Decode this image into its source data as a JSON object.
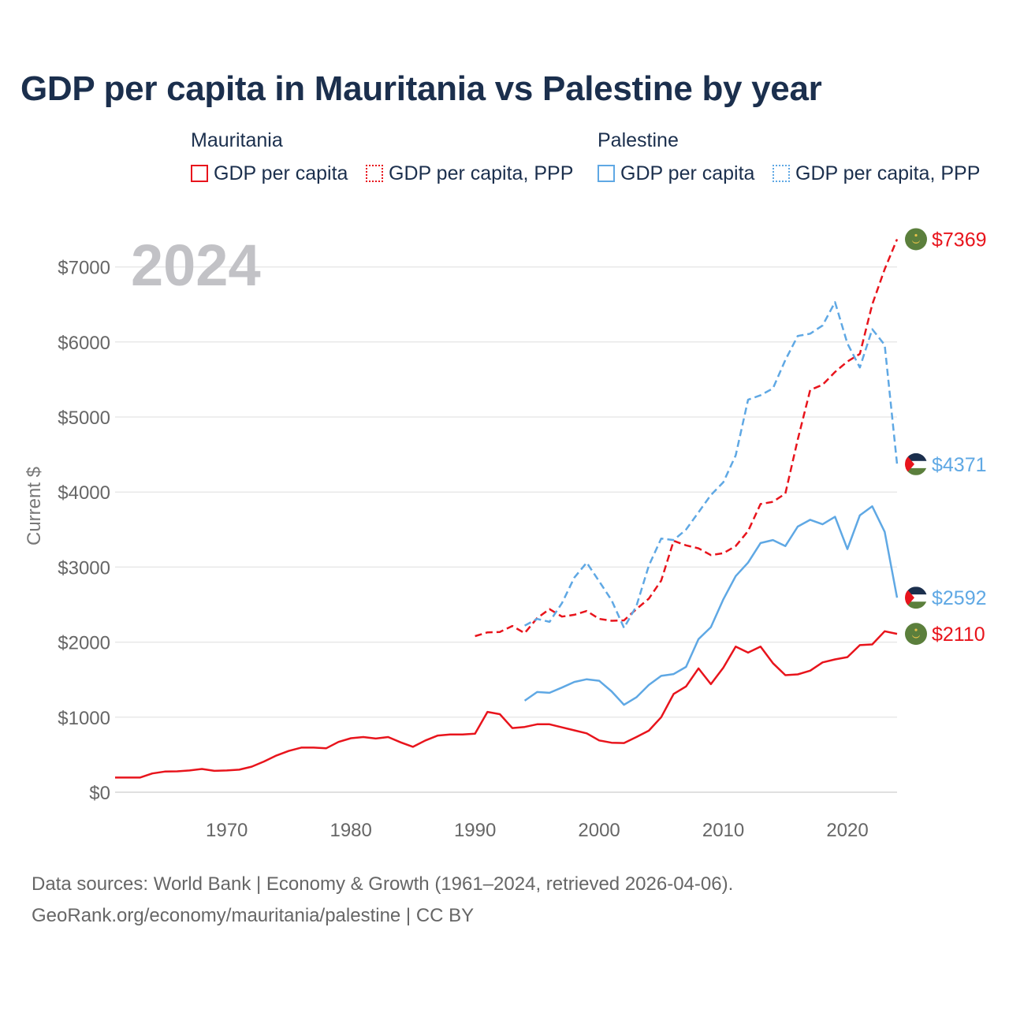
{
  "title": "GDP per capita in Mauritania vs Palestine by year",
  "legend": {
    "groups": [
      {
        "name": "Mauritania",
        "color": "#e8141c",
        "items": [
          {
            "label": "GDP per capita",
            "style": "solid"
          },
          {
            "label": "GDP per capita, PPP",
            "style": "dotted"
          }
        ]
      },
      {
        "name": "Palestine",
        "color": "#5fa8e4",
        "items": [
          {
            "label": "GDP per capita",
            "style": "solid"
          },
          {
            "label": "GDP per capita, PPP",
            "style": "dotted"
          }
        ]
      }
    ]
  },
  "chart_data": {
    "type": "line",
    "ylabel": "Current $",
    "year_label": "2024",
    "xlim": [
      1961,
      2024
    ],
    "ylim": [
      0,
      7500
    ],
    "x_ticks": [
      1970,
      1980,
      1990,
      2000,
      2010,
      2020
    ],
    "y_ticks": [
      {
        "value": 0,
        "label": "$0"
      },
      {
        "value": 1000,
        "label": "$1000"
      },
      {
        "value": 2000,
        "label": "$2000"
      },
      {
        "value": 3000,
        "label": "$3000"
      },
      {
        "value": 4000,
        "label": "$4000"
      },
      {
        "value": 5000,
        "label": "$5000"
      },
      {
        "value": 6000,
        "label": "$6000"
      },
      {
        "value": 7000,
        "label": "$7000"
      }
    ],
    "series": [
      {
        "name": "Mauritania GDP per capita",
        "country": "Mauritania",
        "color": "#e8141c",
        "dash": "none",
        "end_label": "$2110",
        "end_value": 2110,
        "points": [
          [
            1961,
            195
          ],
          [
            1962,
            195
          ],
          [
            1963,
            195
          ],
          [
            1964,
            250
          ],
          [
            1965,
            275
          ],
          [
            1966,
            278
          ],
          [
            1967,
            290
          ],
          [
            1968,
            310
          ],
          [
            1969,
            285
          ],
          [
            1970,
            290
          ],
          [
            1971,
            300
          ],
          [
            1972,
            340
          ],
          [
            1973,
            410
          ],
          [
            1974,
            490
          ],
          [
            1975,
            550
          ],
          [
            1976,
            595
          ],
          [
            1977,
            595
          ],
          [
            1978,
            585
          ],
          [
            1979,
            670
          ],
          [
            1980,
            720
          ],
          [
            1981,
            735
          ],
          [
            1982,
            715
          ],
          [
            1983,
            735
          ],
          [
            1984,
            665
          ],
          [
            1985,
            605
          ],
          [
            1986,
            690
          ],
          [
            1987,
            755
          ],
          [
            1988,
            770
          ],
          [
            1989,
            770
          ],
          [
            1990,
            780
          ],
          [
            1991,
            1070
          ],
          [
            1992,
            1040
          ],
          [
            1993,
            855
          ],
          [
            1994,
            870
          ],
          [
            1995,
            905
          ],
          [
            1996,
            905
          ],
          [
            1997,
            865
          ],
          [
            1998,
            825
          ],
          [
            1999,
            785
          ],
          [
            2000,
            690
          ],
          [
            2001,
            660
          ],
          [
            2002,
            655
          ],
          [
            2003,
            735
          ],
          [
            2004,
            820
          ],
          [
            2005,
            1000
          ],
          [
            2006,
            1310
          ],
          [
            2007,
            1410
          ],
          [
            2008,
            1650
          ],
          [
            2009,
            1440
          ],
          [
            2010,
            1660
          ],
          [
            2011,
            1940
          ],
          [
            2012,
            1860
          ],
          [
            2013,
            1940
          ],
          [
            2014,
            1720
          ],
          [
            2015,
            1560
          ],
          [
            2016,
            1570
          ],
          [
            2017,
            1620
          ],
          [
            2018,
            1730
          ],
          [
            2019,
            1770
          ],
          [
            2020,
            1800
          ],
          [
            2021,
            1960
          ],
          [
            2022,
            1970
          ],
          [
            2023,
            2145
          ],
          [
            2024,
            2110
          ]
        ]
      },
      {
        "name": "Mauritania GDP per capita, PPP",
        "country": "Mauritania",
        "color": "#e8141c",
        "dash": "9,5",
        "end_label": "$7369",
        "end_value": 7369,
        "points": [
          [
            1990,
            2080
          ],
          [
            1991,
            2130
          ],
          [
            1992,
            2135
          ],
          [
            1993,
            2215
          ],
          [
            1994,
            2120
          ],
          [
            1995,
            2320
          ],
          [
            1996,
            2440
          ],
          [
            1997,
            2340
          ],
          [
            1998,
            2365
          ],
          [
            1999,
            2415
          ],
          [
            2000,
            2310
          ],
          [
            2001,
            2285
          ],
          [
            2002,
            2290
          ],
          [
            2003,
            2440
          ],
          [
            2004,
            2580
          ],
          [
            2005,
            2820
          ],
          [
            2006,
            3350
          ],
          [
            2007,
            3290
          ],
          [
            2008,
            3250
          ],
          [
            2009,
            3160
          ],
          [
            2010,
            3185
          ],
          [
            2011,
            3280
          ],
          [
            2012,
            3480
          ],
          [
            2013,
            3840
          ],
          [
            2014,
            3870
          ],
          [
            2015,
            3980
          ],
          [
            2016,
            4700
          ],
          [
            2017,
            5360
          ],
          [
            2018,
            5430
          ],
          [
            2019,
            5600
          ],
          [
            2020,
            5740
          ],
          [
            2021,
            5840
          ],
          [
            2022,
            6500
          ],
          [
            2023,
            6970
          ],
          [
            2024,
            7369
          ]
        ]
      },
      {
        "name": "Palestine GDP per capita",
        "country": "Palestine",
        "color": "#5fa8e4",
        "dash": "none",
        "end_label": "$2592",
        "end_value": 2592,
        "points": [
          [
            1994,
            1220
          ],
          [
            1995,
            1335
          ],
          [
            1996,
            1325
          ],
          [
            1997,
            1395
          ],
          [
            1998,
            1470
          ],
          [
            1999,
            1505
          ],
          [
            2000,
            1485
          ],
          [
            2001,
            1345
          ],
          [
            2002,
            1165
          ],
          [
            2003,
            1265
          ],
          [
            2004,
            1430
          ],
          [
            2005,
            1550
          ],
          [
            2006,
            1575
          ],
          [
            2007,
            1670
          ],
          [
            2008,
            2040
          ],
          [
            2009,
            2200
          ],
          [
            2010,
            2570
          ],
          [
            2011,
            2880
          ],
          [
            2012,
            3060
          ],
          [
            2013,
            3320
          ],
          [
            2014,
            3360
          ],
          [
            2015,
            3280
          ],
          [
            2016,
            3540
          ],
          [
            2017,
            3630
          ],
          [
            2018,
            3570
          ],
          [
            2019,
            3670
          ],
          [
            2020,
            3240
          ],
          [
            2021,
            3690
          ],
          [
            2022,
            3810
          ],
          [
            2023,
            3470
          ],
          [
            2024,
            2592
          ]
        ]
      },
      {
        "name": "Palestine GDP per capita, PPP",
        "country": "Palestine",
        "color": "#5fa8e4",
        "dash": "9,5",
        "end_label": "$4371",
        "end_value": 4371,
        "points": [
          [
            1994,
            2220
          ],
          [
            1995,
            2310
          ],
          [
            1996,
            2270
          ],
          [
            1997,
            2520
          ],
          [
            1998,
            2860
          ],
          [
            1999,
            3060
          ],
          [
            2000,
            2810
          ],
          [
            2001,
            2560
          ],
          [
            2002,
            2190
          ],
          [
            2003,
            2480
          ],
          [
            2004,
            3020
          ],
          [
            2005,
            3380
          ],
          [
            2006,
            3360
          ],
          [
            2007,
            3500
          ],
          [
            2008,
            3730
          ],
          [
            2009,
            3960
          ],
          [
            2010,
            4130
          ],
          [
            2011,
            4490
          ],
          [
            2012,
            5230
          ],
          [
            2013,
            5290
          ],
          [
            2014,
            5380
          ],
          [
            2015,
            5760
          ],
          [
            2016,
            6080
          ],
          [
            2017,
            6110
          ],
          [
            2018,
            6220
          ],
          [
            2019,
            6530
          ],
          [
            2020,
            5980
          ],
          [
            2021,
            5660
          ],
          [
            2022,
            6170
          ],
          [
            2023,
            5960
          ],
          [
            2024,
            4371
          ]
        ]
      }
    ]
  },
  "footer": {
    "line1": "Data sources: World Bank | Economy & Growth (1961–2024, retrieved 2026-04-06).",
    "line2": "GeoRank.org/economy/mauritania/palestine | CC BY"
  }
}
